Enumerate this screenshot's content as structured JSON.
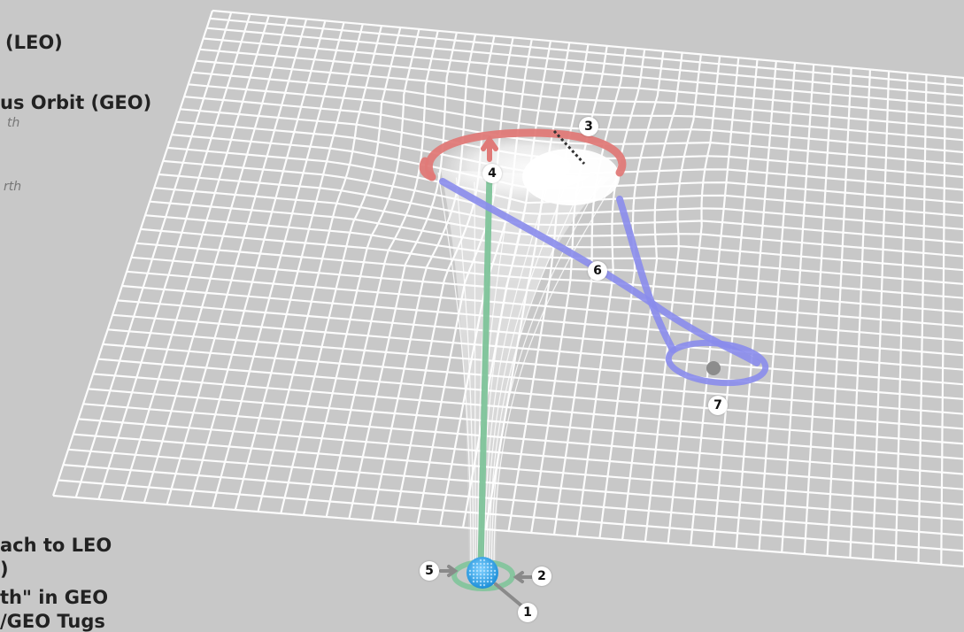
{
  "legend": {
    "leo_label": "(LEO)",
    "geo_label": "us Orbit (GEO)",
    "geo_sub1": "th",
    "geo_sub2": "rth",
    "bottom_line1": "ach to LEO",
    "bottom_line2": ")",
    "bottom_line3": "th\" in GEO",
    "bottom_line4": "/GEO Tugs"
  },
  "markers": {
    "m1": "1",
    "m2": "2",
    "m3": "3",
    "m4": "4",
    "m5": "5",
    "m6": "6",
    "m7": "7"
  },
  "colors": {
    "background": "#c8c8c8",
    "grid": "#ffffff",
    "funnel": "#ffffff",
    "geo_ring": "#e07a78",
    "transfer_path": "#8a8cec",
    "space_elevator": "#7fc49a",
    "earth": "#39a7ea",
    "moon": "#8c8c8c"
  }
}
